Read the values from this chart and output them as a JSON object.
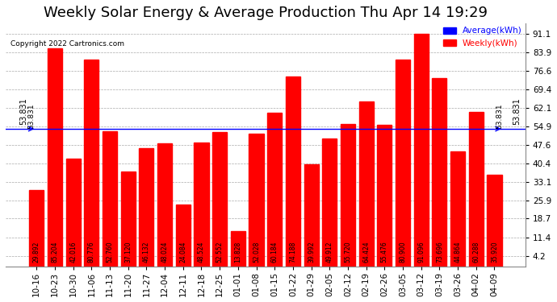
{
  "title": "Weekly Solar Energy & Average Production Thu Apr 14 19:29",
  "copyright": "Copyright 2022 Cartronics.com",
  "legend_avg": "Average(kWh)",
  "legend_weekly": "Weekly(kWh)",
  "average_line": 53.831,
  "average_label": "53.831",
  "bar_color": "#FF0000",
  "avg_line_color": "#0000FF",
  "categories": [
    "10-16",
    "10-23",
    "10-30",
    "11-06",
    "11-13",
    "11-20",
    "11-27",
    "12-04",
    "12-11",
    "12-18",
    "12-25",
    "01-01",
    "01-08",
    "01-15",
    "01-22",
    "01-29",
    "02-05",
    "02-12",
    "02-19",
    "02-26",
    "03-05",
    "03-12",
    "03-19",
    "03-26",
    "04-02",
    "04-09"
  ],
  "values": [
    29.892,
    85.204,
    42.016,
    80.776,
    52.76,
    37.12,
    46.132,
    48.024,
    24.084,
    48.524,
    52.552,
    13.828,
    52.028,
    60.184,
    74.188,
    39.992,
    49.912,
    55.72,
    64.424,
    55.476,
    80.9,
    91.096,
    73.696,
    44.864,
    60.288,
    35.92
  ],
  "yticks_right": [
    4.2,
    11.4,
    18.7,
    25.9,
    33.1,
    40.4,
    47.6,
    54.9,
    62.1,
    69.4,
    76.6,
    83.9,
    91.1
  ],
  "ylim": [
    0,
    95
  ],
  "background_color": "#FFFFFF",
  "grid_color": "#AAAAAA",
  "title_fontsize": 13,
  "tick_fontsize": 7.5,
  "bar_edge_color": "#CC0000"
}
